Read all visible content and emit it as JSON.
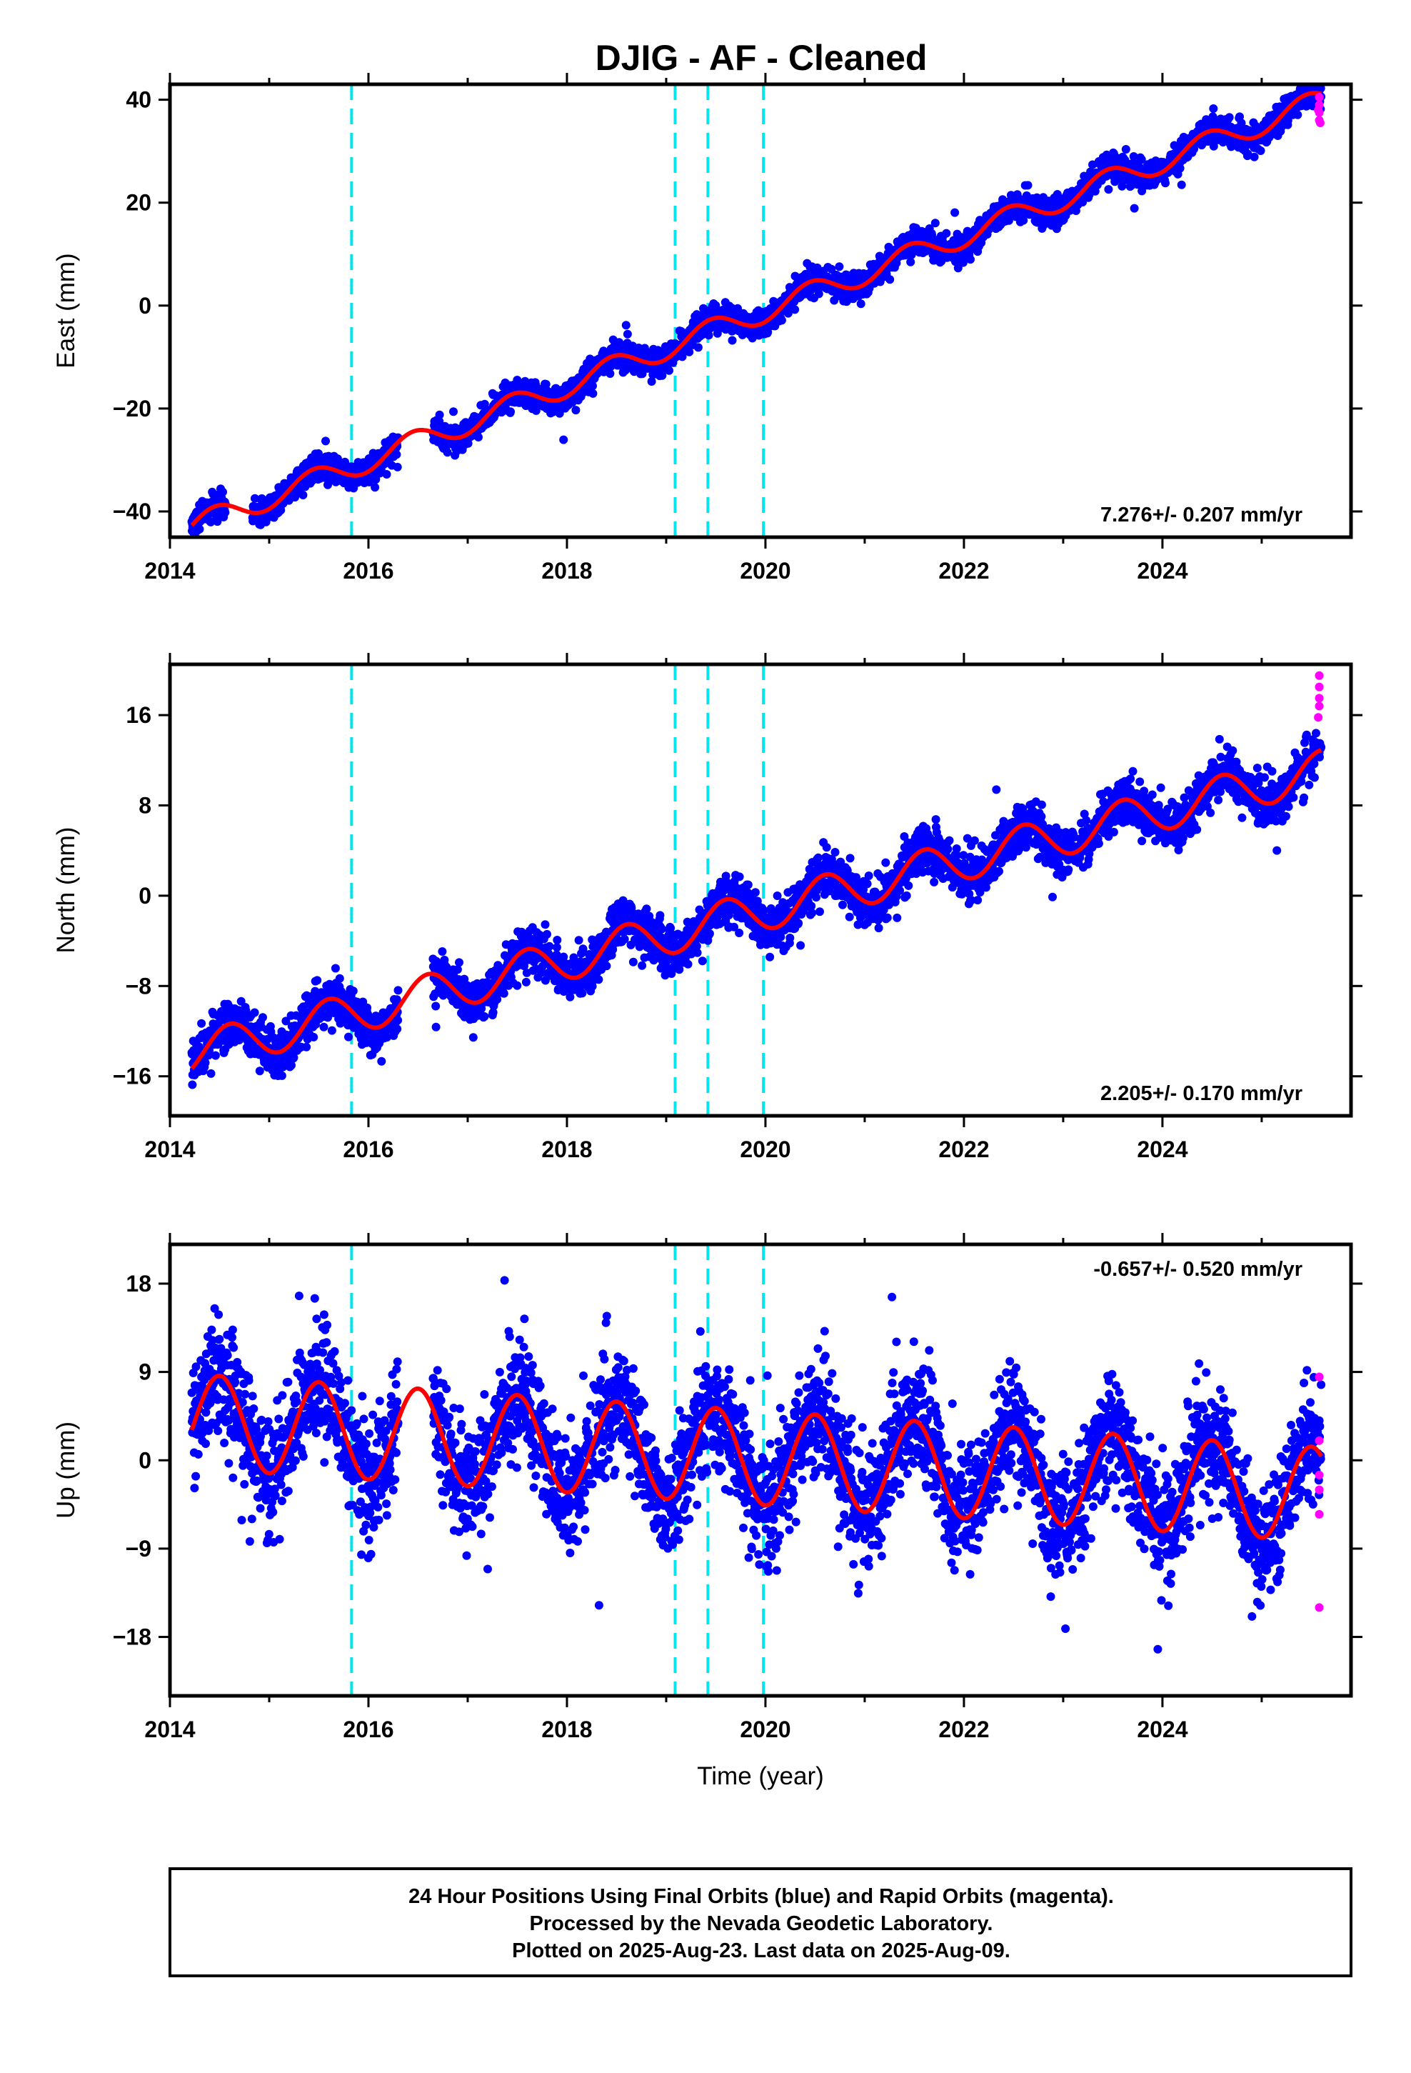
{
  "title": "DJIG  - AF - Cleaned",
  "footer": {
    "lines": [
      "24 Hour Positions Using Final Orbits (blue) and Rapid Orbits (magenta).",
      "Processed by the Nevada Geodetic Laboratory.",
      "Plotted on 2025-Aug-23. Last data on 2025-Aug-09."
    ]
  },
  "colors": {
    "final_orbits": "#0000ff",
    "rapid_orbits": "#ff00ff",
    "model_fit": "#ff0000",
    "events": "#00e5ee",
    "frame": "#000000"
  },
  "chart_data": [
    {
      "type": "scatter",
      "component": "east",
      "xlabel": "",
      "ylabel": "East (mm)",
      "xlim": [
        2014.0,
        2025.9
      ],
      "ylim": [
        -45,
        43
      ],
      "xticks": [
        2014,
        2016,
        2018,
        2020,
        2022,
        2024
      ],
      "yticks": [
        -40,
        -20,
        0,
        20,
        40
      ],
      "grid": false,
      "rate_label": "7.276+/- 0.207 mm/yr",
      "rate_label_position": "bottom-right",
      "events": [
        2015.83,
        2019.09,
        2019.42,
        2019.98
      ],
      "data_start": 2014.22,
      "data_end": 2025.6,
      "gaps": [
        [
          2014.56,
          2014.83
        ],
        [
          2016.3,
          2016.65
        ]
      ],
      "trend": {
        "reference_year": 2014.22,
        "reference_value": -43.0,
        "rate_mm_per_yr": 7.276
      },
      "annual": {
        "amplitude": 2.3,
        "peak_year": 2014.45
      },
      "scatter_sd": 1.3,
      "rapid_points": [
        {
          "x": 2025.58,
          "y": 36.0
        },
        {
          "x": 2025.58,
          "y": 37.5
        },
        {
          "x": 2025.58,
          "y": 39.0
        },
        {
          "x": 2025.58,
          "y": 40.5
        },
        {
          "x": 2025.57,
          "y": 38.0
        },
        {
          "x": 2025.59,
          "y": 35.5
        }
      ]
    },
    {
      "type": "scatter",
      "component": "north",
      "xlabel": "",
      "ylabel": "North (mm)",
      "xlim": [
        2014.0,
        2025.9
      ],
      "ylim": [
        -19.5,
        20.5
      ],
      "xticks": [
        2014,
        2016,
        2018,
        2020,
        2022,
        2024
      ],
      "yticks": [
        -16,
        -8,
        0,
        8,
        16
      ],
      "grid": false,
      "rate_label": "2.205+/- 0.170 mm/yr",
      "rate_label_position": "bottom-right",
      "events": [
        2015.83,
        2019.09,
        2019.42,
        2019.98
      ],
      "data_start": 2014.22,
      "data_end": 2025.6,
      "gaps": [
        [
          2016.3,
          2016.65
        ]
      ],
      "trend": {
        "reference_year": 2014.22,
        "reference_value": -14.0,
        "rate_mm_per_yr": 2.205
      },
      "annual": {
        "amplitude": 1.8,
        "peak_year": 2014.6
      },
      "scatter_sd": 1.0,
      "rapid_points": [
        {
          "x": 2025.58,
          "y": 19.5
        },
        {
          "x": 2025.58,
          "y": 18.5
        },
        {
          "x": 2025.58,
          "y": 17.5
        },
        {
          "x": 2025.58,
          "y": 16.8
        },
        {
          "x": 2025.57,
          "y": 15.8
        }
      ]
    },
    {
      "type": "scatter",
      "component": "up",
      "xlabel": "Time (year)",
      "ylabel": "Up (mm)",
      "xlim": [
        2014.0,
        2025.9
      ],
      "ylim": [
        -24,
        22
      ],
      "xticks": [
        2014,
        2016,
        2018,
        2020,
        2022,
        2024
      ],
      "yticks": [
        -18,
        -9,
        0,
        9,
        18
      ],
      "grid": false,
      "rate_label": "-0.657+/- 0.520 mm/yr",
      "rate_label_position": "top-right",
      "events": [
        2015.83,
        2019.09,
        2019.42,
        2019.98
      ],
      "data_start": 2014.22,
      "data_end": 2025.6,
      "gaps": [
        [
          2016.3,
          2016.65
        ]
      ],
      "trend": {
        "reference_year": 2014.22,
        "reference_value": 4.0,
        "rate_mm_per_yr": -0.657
      },
      "annual": {
        "amplitude": 4.8,
        "peak_year": 2014.5
      },
      "scatter_sd": 3.0,
      "rapid_points": [
        {
          "x": 2025.58,
          "y": 8.5
        },
        {
          "x": 2025.58,
          "y": 2.0
        },
        {
          "x": 2025.58,
          "y": -1.5
        },
        {
          "x": 2025.58,
          "y": -3.0
        },
        {
          "x": 2025.58,
          "y": -5.5
        },
        {
          "x": 2025.58,
          "y": -15.0
        }
      ]
    }
  ]
}
